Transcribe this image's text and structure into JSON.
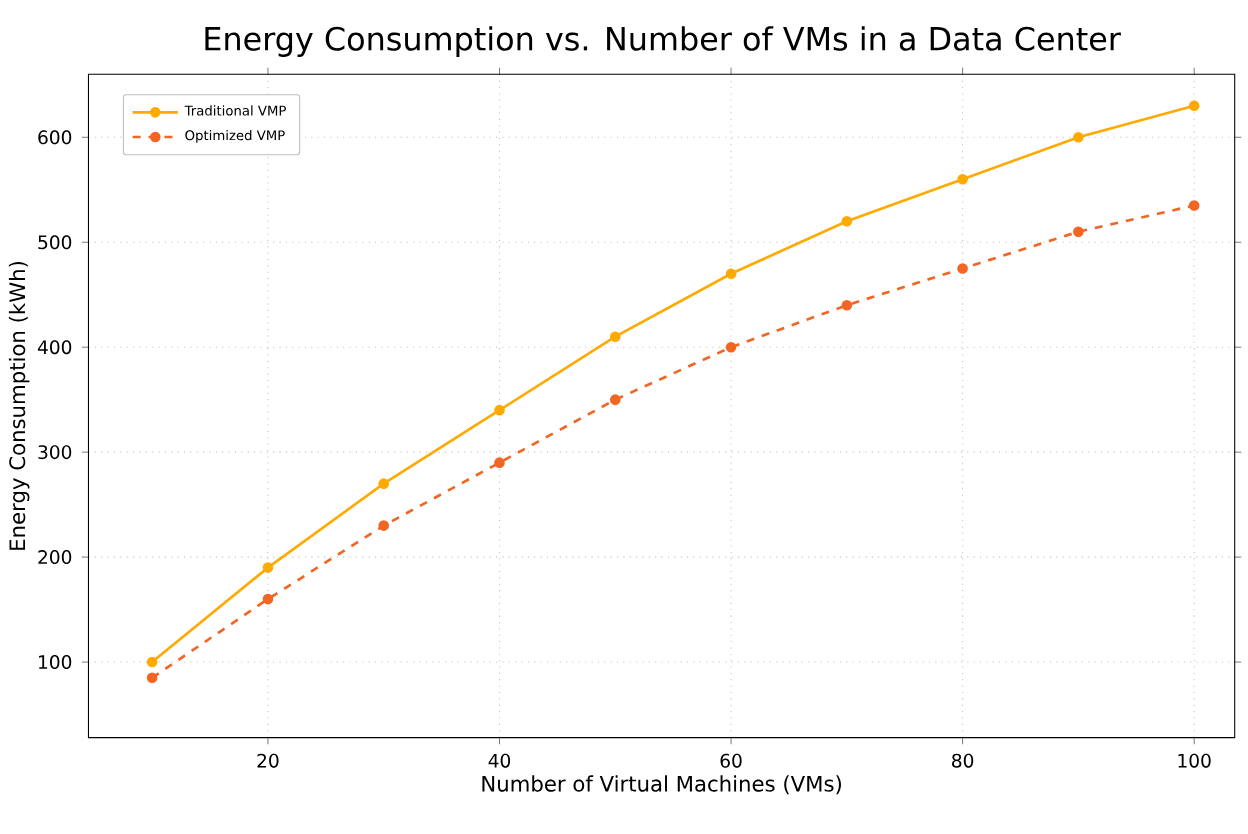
{
  "chart_data": {
    "type": "line",
    "title": "Energy Consumption vs. Number of VMs in a Data Center",
    "xlabel": "Number of Virtual Machines (VMs)",
    "ylabel": "Energy Consumption (kWh)",
    "x": [
      10,
      20,
      30,
      40,
      50,
      60,
      70,
      80,
      90,
      100
    ],
    "series": [
      {
        "name": "Traditional VMP",
        "color": "#ffaa00",
        "line_style": "solid",
        "values": [
          100,
          190,
          270,
          340,
          410,
          470,
          520,
          560,
          600,
          630
        ]
      },
      {
        "name": "Optimized VMP",
        "color": "#f26522",
        "line_style": "dashed",
        "values": [
          85,
          160,
          230,
          290,
          350,
          400,
          440,
          475,
          510,
          535
        ]
      }
    ],
    "xlim": [
      4.5,
      103.5
    ],
    "ylim": [
      28,
      660
    ],
    "xticks": [
      20,
      40,
      60,
      80,
      100
    ],
    "yticks": [
      100,
      200,
      300,
      400,
      500,
      600
    ],
    "grid": true,
    "legend": "top left",
    "marker": "circle"
  }
}
